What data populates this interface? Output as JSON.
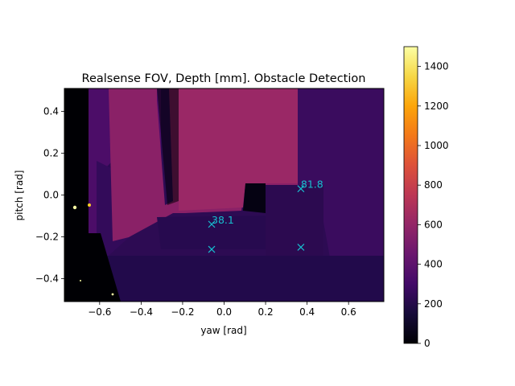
{
  "chart_data": {
    "type": "heatmap",
    "title": "Realsense FOV, Depth [mm]. Obstacle Detection",
    "xlabel": "yaw [rad]",
    "ylabel": "pitch [rad]",
    "xlim": [
      -0.77,
      0.77
    ],
    "ylim": [
      -0.51,
      0.51
    ],
    "xticks": [
      -0.6,
      -0.4,
      -0.2,
      0.0,
      0.2,
      0.4,
      0.6
    ],
    "xtick_labels": [
      "−0.6",
      "−0.4",
      "−0.2",
      "0.0",
      "0.2",
      "0.4",
      "0.6"
    ],
    "yticks": [
      0.4,
      0.2,
      0.0,
      -0.2,
      -0.4
    ],
    "ytick_labels": [
      "0.4",
      "0.2",
      "0.0",
      "−0.2",
      "−0.4"
    ],
    "colormap": "inferno",
    "colorbar": {
      "range": [
        0,
        1500
      ],
      "ticks": [
        0,
        200,
        400,
        600,
        800,
        1000,
        1200,
        1400
      ],
      "tick_labels": [
        "0",
        "200",
        "400",
        "600",
        "800",
        "1000",
        "1200",
        "1400"
      ]
    },
    "markers": [
      {
        "x": -0.06,
        "y": -0.14,
        "label": "38.1"
      },
      {
        "x": -0.06,
        "y": -0.26,
        "label": ""
      },
      {
        "x": 0.37,
        "y": 0.03,
        "label": "81.8"
      },
      {
        "x": 0.37,
        "y": -0.25,
        "label": ""
      }
    ],
    "marker_color": "#17becf"
  }
}
